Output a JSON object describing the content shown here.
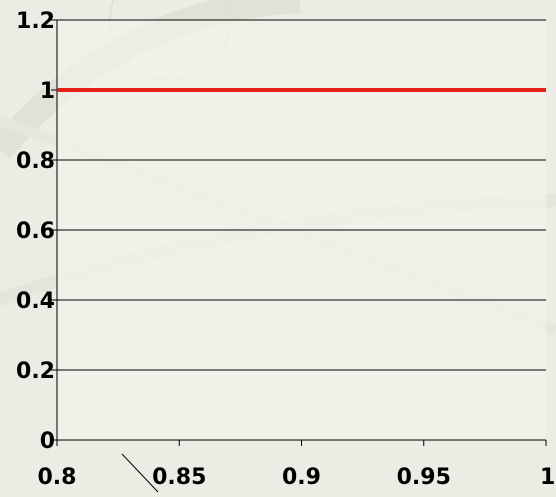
{
  "chart_data": {
    "type": "line",
    "title": "",
    "xlabel": "",
    "ylabel": "",
    "xlim": [
      0.8,
      1.0
    ],
    "ylim": [
      0,
      1.2
    ],
    "x_ticks": [
      "0.8",
      "0.85",
      "0.9",
      "0.95",
      "1"
    ],
    "y_ticks": [
      "0",
      "0.2",
      "0.4",
      "0.6",
      "0.8",
      "1",
      "1.2"
    ],
    "grid": "horizontal",
    "series": [
      {
        "color": "#e8201c",
        "points": [
          [
            0.8,
            1.0
          ],
          [
            1.0,
            1.0
          ]
        ]
      }
    ]
  },
  "colors": {
    "background": "#ecece4",
    "plot_area": "#f5f5ef",
    "axis": "#000000",
    "series": "#e8201c"
  }
}
